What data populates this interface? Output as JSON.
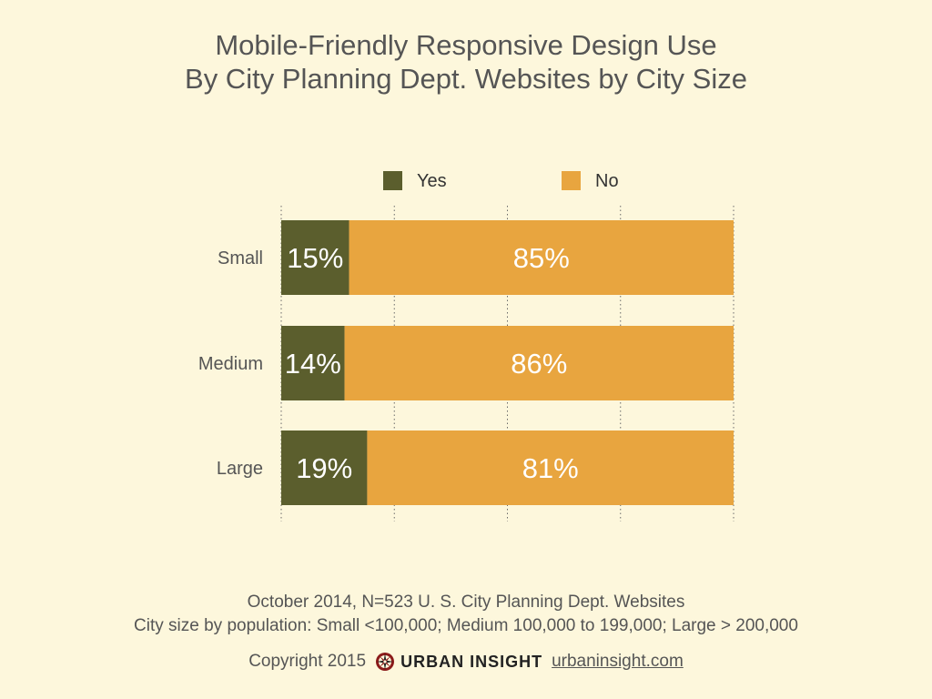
{
  "chart_data": {
    "type": "bar",
    "orientation": "horizontal",
    "stacked": true,
    "title": [
      "Mobile-Friendly Responsive Design Use",
      "By City Planning Dept. Websites by City Size"
    ],
    "categories": [
      "Small",
      "Medium",
      "Large"
    ],
    "series": [
      {
        "name": "Yes",
        "color": "#5b5e2d",
        "values": [
          15,
          14,
          19
        ],
        "labels": [
          "15%",
          "14%",
          "19%"
        ]
      },
      {
        "name": "No",
        "color": "#e8a53f",
        "values": [
          85,
          86,
          81
        ],
        "labels": [
          "85%",
          "86%",
          "81%"
        ]
      }
    ],
    "xlim": [
      0,
      100
    ],
    "grid": "vertical dotted",
    "legend": "top-center"
  },
  "footnotes": [
    "October 2014, N=523 U. S. City Planning Dept. Websites",
    "City size by population:  Small <100,000; Medium 100,000 to 199,000; Large > 200,000"
  ],
  "credit": {
    "copyright": "Copyright 2015",
    "brand_name": "URBAN INSIGHT",
    "brand_url": "urbaninsight.com",
    "logo_icon": "compass-rose-icon"
  },
  "colors": {
    "background": "#fdf7dc",
    "text": "#555555"
  }
}
